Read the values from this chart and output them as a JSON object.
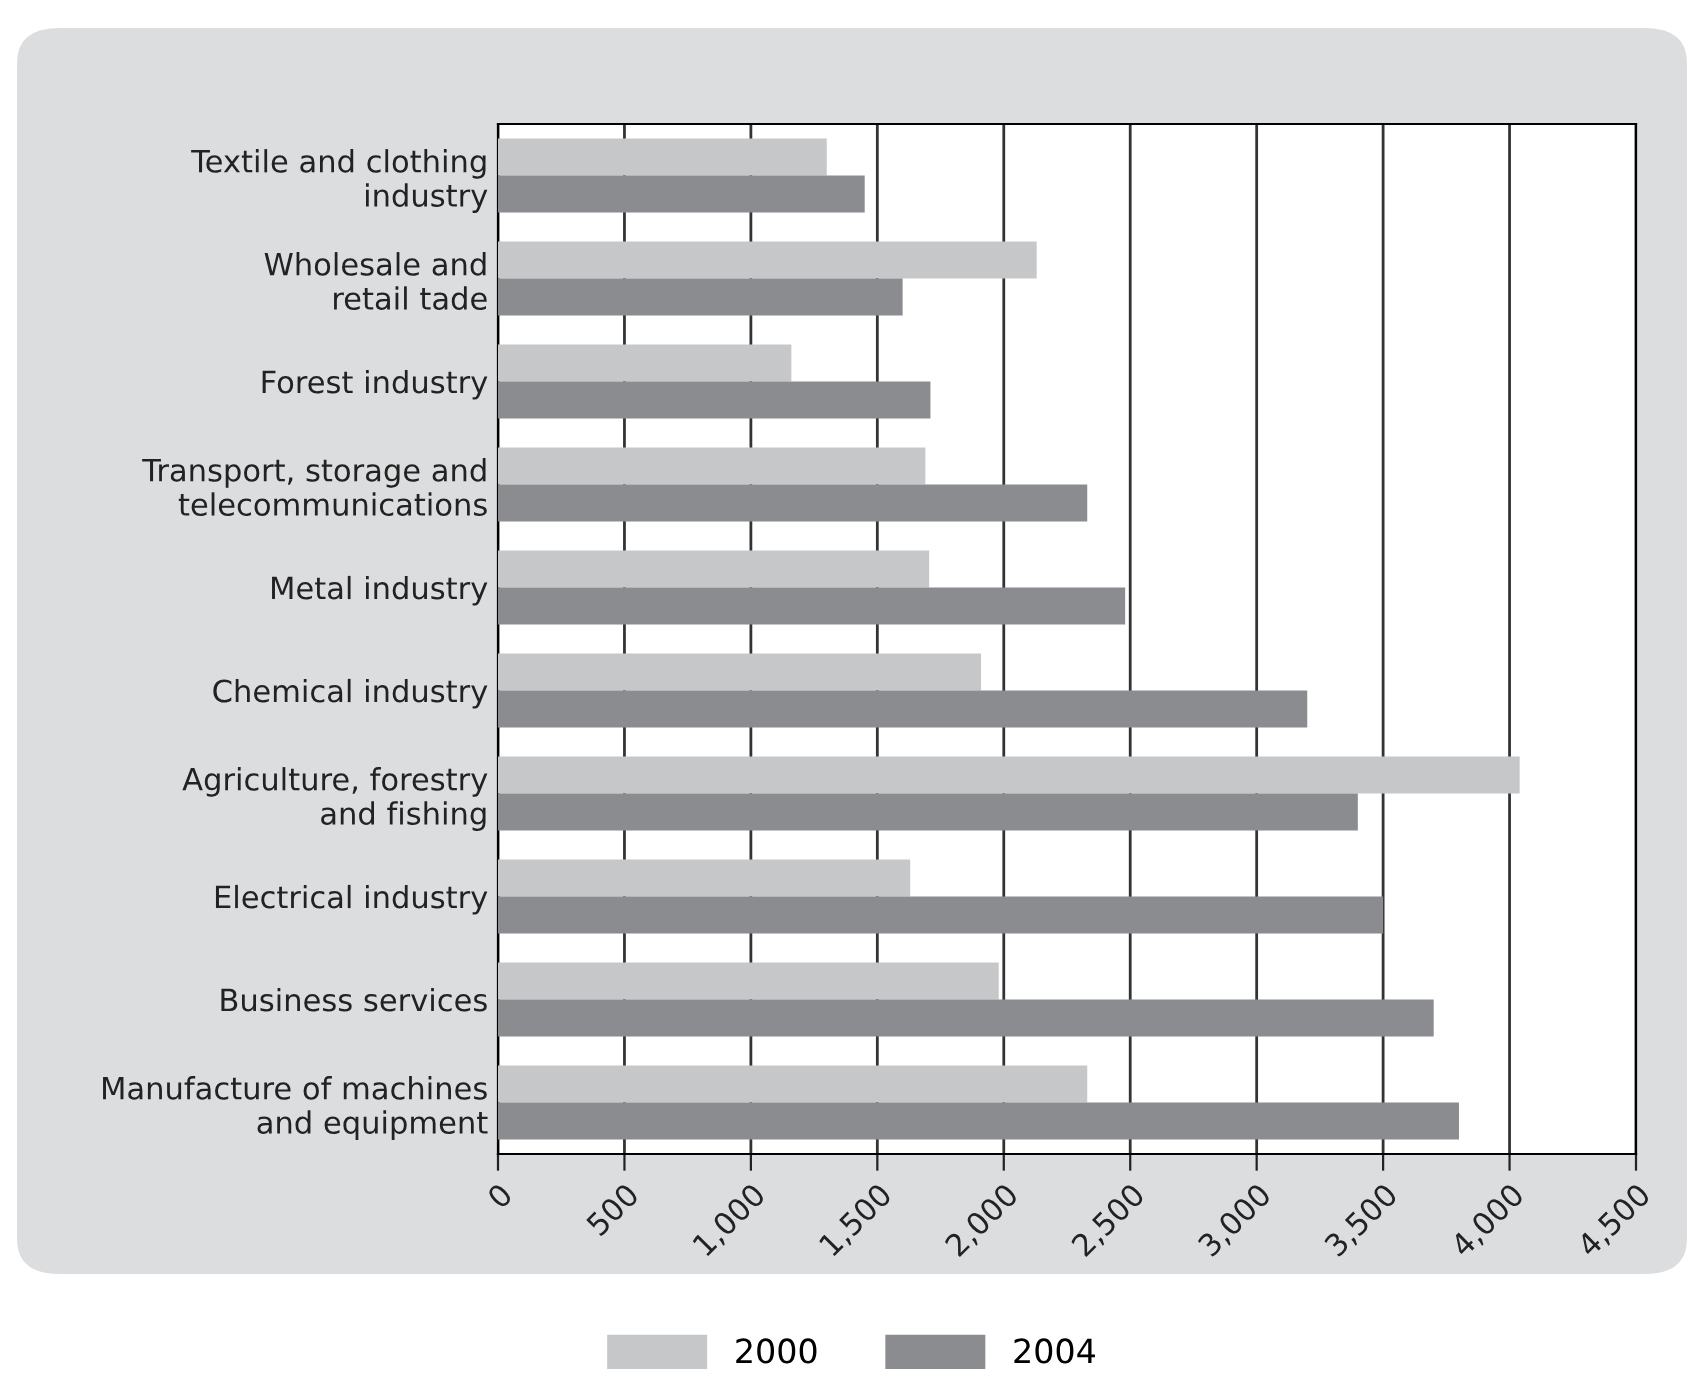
{
  "chart_data": {
    "type": "bar",
    "orientation": "horizontal",
    "categories": [
      "Textile and clothing\nindustry",
      "Wholesale and\nretail tade",
      "Forest industry",
      "Transport, storage and\ntelecommunications",
      "Metal industry",
      "Chemical industry",
      "Agriculture, forestry\nand fishing",
      "Electrical industry",
      "Business services",
      "Manufacture of machines\nand equipment"
    ],
    "series": [
      {
        "name": "2000",
        "color": "#c6c7c9",
        "values": [
          1300,
          2130,
          1160,
          1690,
          1705,
          1910,
          4040,
          1630,
          1980,
          2330
        ]
      },
      {
        "name": "2004",
        "color": "#8b8c90",
        "values": [
          1450,
          1600,
          1710,
          2330,
          2480,
          3200,
          3400,
          3500,
          3700,
          3800
        ]
      }
    ],
    "xlim": [
      0,
      4500
    ],
    "xticks": [
      0,
      500,
      {
        "value": 1000,
        "label": "1,000"
      },
      {
        "value": 1500,
        "label": "1,500"
      },
      {
        "value": 2000,
        "label": "2,000"
      },
      {
        "value": 2500,
        "label": "2,500"
      },
      {
        "value": 3000,
        "label": "3,000"
      },
      {
        "value": 3500,
        "label": "3,500"
      },
      {
        "value": 4000,
        "label": "4,000"
      },
      {
        "value": 4500,
        "label": "4,500"
      }
    ],
    "grid": "x",
    "legend": "bottom"
  }
}
